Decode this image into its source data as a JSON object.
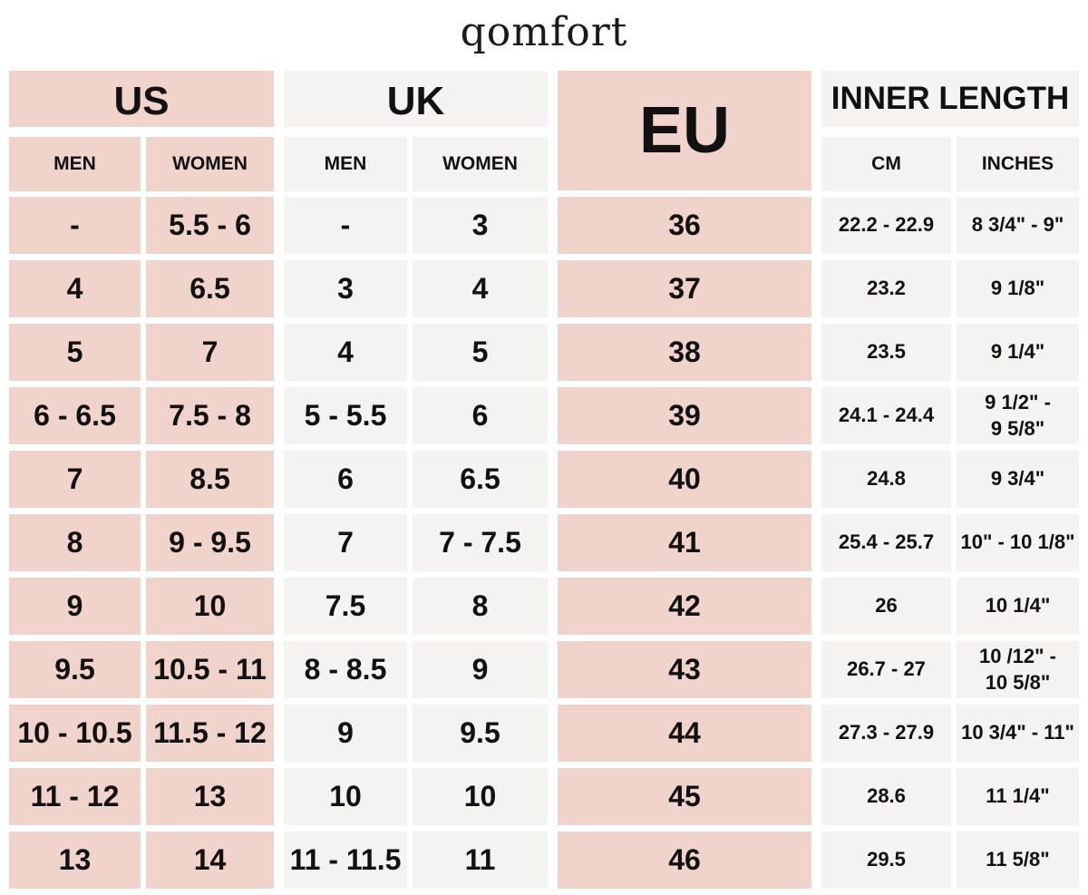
{
  "brand": "qomfort",
  "colors": {
    "pink": "#f0d3ca",
    "grey": "#f4f3f1",
    "text": "#111111"
  },
  "headers": {
    "us": "US",
    "uk": "UK",
    "eu": "EU",
    "inner_length": "INNER LENGTH",
    "men": "MEN",
    "women": "WOMEN",
    "cm": "CM",
    "inches": "INCHES"
  },
  "rows": [
    {
      "us_men": "-",
      "us_women": "5.5 - 6",
      "uk_men": "-",
      "uk_women": "3",
      "eu": "36",
      "cm": "22.2 - 22.9",
      "inches": "8 3/4\" - 9\""
    },
    {
      "us_men": "4",
      "us_women": "6.5",
      "uk_men": "3",
      "uk_women": "4",
      "eu": "37",
      "cm": "23.2",
      "inches": "9 1/8\""
    },
    {
      "us_men": "5",
      "us_women": "7",
      "uk_men": "4",
      "uk_women": "5",
      "eu": "38",
      "cm": "23.5",
      "inches": "9 1/4\""
    },
    {
      "us_men": "6 - 6.5",
      "us_women": "7.5 - 8",
      "uk_men": "5 - 5.5",
      "uk_women": "6",
      "eu": "39",
      "cm": "24.1 - 24.4",
      "inches": "9 1/2\" -\n9 5/8\""
    },
    {
      "us_men": "7",
      "us_women": "8.5",
      "uk_men": "6",
      "uk_women": "6.5",
      "eu": "40",
      "cm": "24.8",
      "inches": "9 3/4\""
    },
    {
      "us_men": "8",
      "us_women": "9 - 9.5",
      "uk_men": "7",
      "uk_women": "7 - 7.5",
      "eu": "41",
      "cm": "25.4 - 25.7",
      "inches": "10\" - 10 1/8\""
    },
    {
      "us_men": "9",
      "us_women": "10",
      "uk_men": "7.5",
      "uk_women": "8",
      "eu": "42",
      "cm": "26",
      "inches": "10 1/4\""
    },
    {
      "us_men": "9.5",
      "us_women": "10.5 - 11",
      "uk_men": "8 - 8.5",
      "uk_women": "9",
      "eu": "43",
      "cm": "26.7 - 27",
      "inches": "10 /12\" -\n10 5/8\""
    },
    {
      "us_men": "10 - 10.5",
      "us_women": "11.5 - 12",
      "uk_men": "9",
      "uk_women": "9.5",
      "eu": "44",
      "cm": "27.3 - 27.9",
      "inches": "10 3/4\" - 11\""
    },
    {
      "us_men": "11 - 12",
      "us_women": "13",
      "uk_men": "10",
      "uk_women": "10",
      "eu": "45",
      "cm": "28.6",
      "inches": "11 1/4\""
    },
    {
      "us_men": "13",
      "us_women": "14",
      "uk_men": "11 - 11.5",
      "uk_women": "11",
      "eu": "46",
      "cm": "29.5",
      "inches": "11 5/8\""
    }
  ]
}
